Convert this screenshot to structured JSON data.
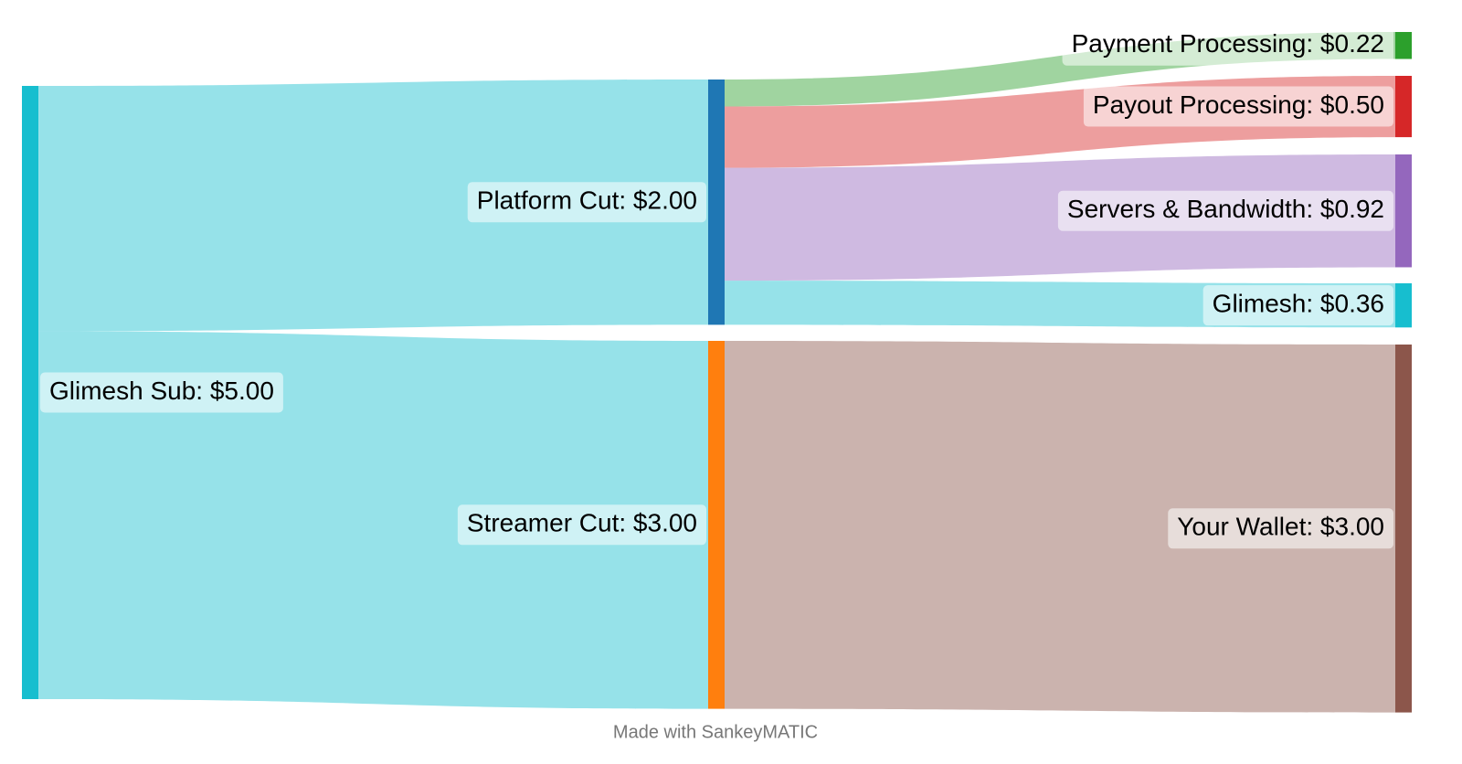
{
  "chart_data": {
    "type": "sankey",
    "nodes": [
      {
        "label": "Glimesh Sub: $5.00",
        "value": 5,
        "color": "#17becf"
      },
      {
        "label": "Platform Cut: $2.00",
        "value": 2,
        "color": "#1f77b4"
      },
      {
        "label": "Streamer Cut: $3.00",
        "value": 3,
        "color": "#ff7f0e"
      },
      {
        "label": "Payment Processing: $0.22",
        "value": 0.22,
        "color": "#2ca02c"
      },
      {
        "label": "Payout Processing: $0.50",
        "value": 0.5,
        "color": "#d62728"
      },
      {
        "label": "Servers & Bandwidth: $0.92",
        "value": 0.92,
        "color": "#9467bd"
      },
      {
        "label": "Glimesh: $0.36",
        "value": 0.36,
        "color": "#17becf"
      },
      {
        "label": "Your Wallet: $3.00",
        "value": 3,
        "color": "#8c564b"
      }
    ],
    "links": [
      {
        "source": 0,
        "target": 1,
        "value": 2,
        "color": "#17becf"
      },
      {
        "source": 0,
        "target": 2,
        "value": 3,
        "color": "#17becf"
      },
      {
        "source": 1,
        "target": 3,
        "value": 0.22,
        "color": "#2ca02c"
      },
      {
        "source": 1,
        "target": 4,
        "value": 0.5,
        "color": "#d62728"
      },
      {
        "source": 1,
        "target": 5,
        "value": 0.92,
        "color": "#9467bd"
      },
      {
        "source": 1,
        "target": 6,
        "value": 0.36,
        "color": "#17becf"
      },
      {
        "source": 2,
        "target": 7,
        "value": 3,
        "color": "#8c564b"
      }
    ],
    "credit": "Made with SankeyMATIC"
  }
}
